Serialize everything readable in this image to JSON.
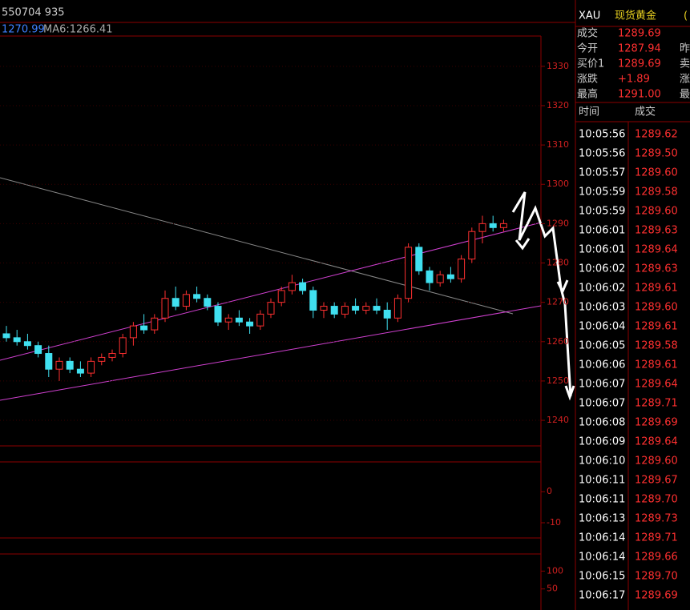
{
  "top_labels": {
    "code": "550704 935",
    "ma5": "1270.99",
    "ma6": "MA6:1266.41"
  },
  "kline": {
    "ylim": [
      1233.5,
      1337.7
    ],
    "yticks": [
      1240,
      1250,
      1260,
      1270,
      1280,
      1290,
      1300,
      1310,
      1320,
      1330
    ],
    "candles": [
      [
        1262,
        1264,
        1260,
        1261
      ],
      [
        1261,
        1263,
        1259,
        1260
      ],
      [
        1260,
        1262,
        1258,
        1259
      ],
      [
        1259,
        1260,
        1256,
        1257
      ],
      [
        1257,
        1259,
        1251,
        1253
      ],
      [
        1253,
        1256,
        1250,
        1255
      ],
      [
        1255,
        1256,
        1252,
        1253
      ],
      [
        1253,
        1255,
        1251,
        1252
      ],
      [
        1252,
        1256,
        1251,
        1255
      ],
      [
        1255,
        1257,
        1254,
        1256
      ],
      [
        1256,
        1258,
        1255,
        1257
      ],
      [
        1257,
        1262,
        1256,
        1261
      ],
      [
        1261,
        1265,
        1259,
        1264
      ],
      [
        1264,
        1267,
        1262,
        1263
      ],
      [
        1263,
        1267,
        1262,
        1266
      ],
      [
        1266,
        1273,
        1265,
        1271
      ],
      [
        1271,
        1274,
        1268,
        1269
      ],
      [
        1269,
        1273,
        1268,
        1272
      ],
      [
        1272,
        1274,
        1270,
        1271
      ],
      [
        1271,
        1272,
        1268,
        1269
      ],
      [
        1269,
        1270,
        1264,
        1265
      ],
      [
        1265,
        1267,
        1263,
        1266
      ],
      [
        1266,
        1268,
        1264,
        1265
      ],
      [
        1265,
        1266,
        1262,
        1264
      ],
      [
        1264,
        1268,
        1263,
        1267
      ],
      [
        1267,
        1271,
        1266,
        1270
      ],
      [
        1270,
        1274,
        1269,
        1273
      ],
      [
        1273,
        1277,
        1272,
        1275
      ],
      [
        1275,
        1276,
        1272,
        1273
      ],
      [
        1273,
        1274,
        1266,
        1268
      ],
      [
        1268,
        1270,
        1266,
        1269
      ],
      [
        1269,
        1270,
        1266,
        1267
      ],
      [
        1267,
        1270,
        1266,
        1269
      ],
      [
        1269,
        1271,
        1267,
        1268
      ],
      [
        1268,
        1270,
        1267,
        1269
      ],
      [
        1269,
        1271,
        1267,
        1268
      ],
      [
        1268,
        1270,
        1263,
        1266
      ],
      [
        1266,
        1272,
        1265,
        1271
      ],
      [
        1271,
        1285,
        1270,
        1284
      ],
      [
        1284,
        1285,
        1277,
        1278
      ],
      [
        1278,
        1279,
        1273,
        1275
      ],
      [
        1275,
        1278,
        1274,
        1277
      ],
      [
        1277,
        1279,
        1275,
        1276
      ],
      [
        1276,
        1282,
        1275,
        1281
      ],
      [
        1281,
        1289,
        1280,
        1288
      ],
      [
        1288,
        1292,
        1285,
        1290
      ],
      [
        1290,
        1292,
        1288,
        1289
      ],
      [
        1289,
        1291,
        1288,
        1290
      ]
    ]
  },
  "macd": {
    "ylim": [
      -14.9,
      9.6
    ],
    "yticks": [
      0,
      -10
    ]
  },
  "kdj": {
    "ylim": [
      -9,
      148
    ],
    "yticks": [
      100,
      50
    ]
  },
  "quote": {
    "symbol": "XAU",
    "name": "现货黄金",
    "extra": "(",
    "rows": [
      [
        "成交",
        "1289.69"
      ],
      [
        "今开",
        "1287.94",
        "昨"
      ],
      [
        "买价1",
        "1289.69",
        "卖"
      ],
      [
        "涨跌",
        "+1.89",
        "涨"
      ],
      [
        "最高",
        "1291.00",
        "最"
      ]
    ]
  },
  "trades": {
    "header": [
      "时间",
      "成交"
    ],
    "rows": [
      [
        "10:05:56",
        "1289.62"
      ],
      [
        "10:05:56",
        "1289.50"
      ],
      [
        "10:05:57",
        "1289.60"
      ],
      [
        "10:05:59",
        "1289.58"
      ],
      [
        "10:05:59",
        "1289.60"
      ],
      [
        "10:06:01",
        "1289.63"
      ],
      [
        "10:06:01",
        "1289.64"
      ],
      [
        "10:06:02",
        "1289.63"
      ],
      [
        "10:06:02",
        "1289.61"
      ],
      [
        "10:06:03",
        "1289.60"
      ],
      [
        "10:06:04",
        "1289.61"
      ],
      [
        "10:06:05",
        "1289.58"
      ],
      [
        "10:06:06",
        "1289.61"
      ],
      [
        "10:06:07",
        "1289.64"
      ],
      [
        "10:06:07",
        "1289.71"
      ],
      [
        "10:06:08",
        "1289.69"
      ],
      [
        "10:06:09",
        "1289.64"
      ],
      [
        "10:06:10",
        "1289.60"
      ],
      [
        "10:06:11",
        "1289.67"
      ],
      [
        "10:06:11",
        "1289.70"
      ],
      [
        "10:06:13",
        "1289.73"
      ],
      [
        "10:06:14",
        "1289.71"
      ],
      [
        "10:06:14",
        "1289.66"
      ],
      [
        "10:06:15",
        "1289.70"
      ],
      [
        "10:06:17",
        "1289.69"
      ]
    ]
  }
}
